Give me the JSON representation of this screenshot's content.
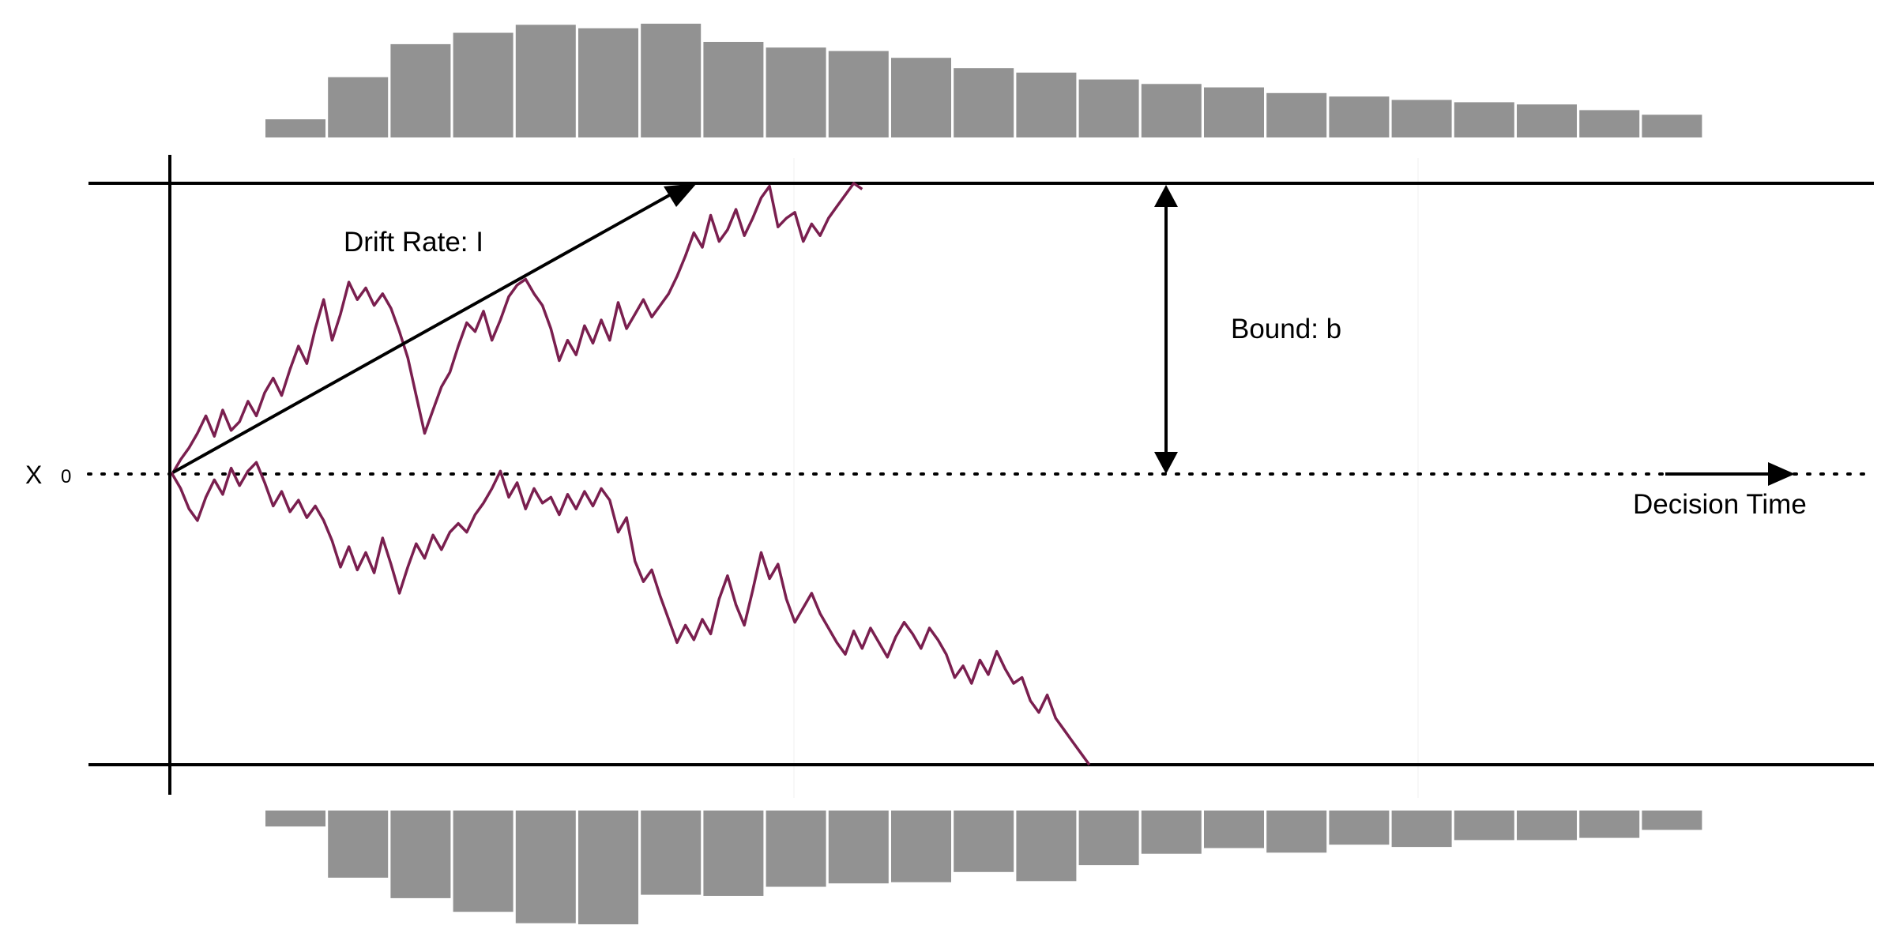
{
  "labels": {
    "drift": "Drift Rate: I",
    "bound": "Bound: b",
    "time": "Decision Time",
    "x0_symbol": "X",
    "x0_value": "0"
  },
  "colors": {
    "path": "#7a1f4f",
    "hist": "#929292",
    "axis": "#000000"
  },
  "chart_data": {
    "type": "diagram",
    "upper_histogram": [
      0.16,
      0.53,
      0.82,
      0.92,
      0.99,
      0.96,
      1.0,
      0.84,
      0.79,
      0.76,
      0.7,
      0.61,
      0.57,
      0.51,
      0.47,
      0.44,
      0.39,
      0.36,
      0.33,
      0.31,
      0.29,
      0.24,
      0.2
    ],
    "lower_histogram": [
      0.14,
      0.59,
      0.77,
      0.89,
      0.99,
      1.0,
      0.74,
      0.75,
      0.67,
      0.64,
      0.63,
      0.54,
      0.62,
      0.48,
      0.38,
      0.33,
      0.37,
      0.3,
      0.32,
      0.26,
      0.26,
      0.24,
      0.17
    ],
    "upper_path": [
      [
        0,
        0.0
      ],
      [
        0.005,
        0.05
      ],
      [
        0.01,
        0.09
      ],
      [
        0.015,
        0.14
      ],
      [
        0.02,
        0.2
      ],
      [
        0.025,
        0.13
      ],
      [
        0.03,
        0.22
      ],
      [
        0.035,
        0.15
      ],
      [
        0.04,
        0.18
      ],
      [
        0.045,
        0.25
      ],
      [
        0.05,
        0.2
      ],
      [
        0.055,
        0.28
      ],
      [
        0.06,
        0.33
      ],
      [
        0.065,
        0.27
      ],
      [
        0.07,
        0.36
      ],
      [
        0.075,
        0.44
      ],
      [
        0.08,
        0.38
      ],
      [
        0.085,
        0.5
      ],
      [
        0.09,
        0.6
      ],
      [
        0.095,
        0.46
      ],
      [
        0.1,
        0.55
      ],
      [
        0.105,
        0.66
      ],
      [
        0.11,
        0.6
      ],
      [
        0.115,
        0.64
      ],
      [
        0.12,
        0.58
      ],
      [
        0.125,
        0.62
      ],
      [
        0.13,
        0.57
      ],
      [
        0.135,
        0.49
      ],
      [
        0.14,
        0.4
      ],
      [
        0.145,
        0.27
      ],
      [
        0.15,
        0.14
      ],
      [
        0.155,
        0.22
      ],
      [
        0.16,
        0.3
      ],
      [
        0.165,
        0.35
      ],
      [
        0.17,
        0.44
      ],
      [
        0.175,
        0.52
      ],
      [
        0.18,
        0.49
      ],
      [
        0.185,
        0.56
      ],
      [
        0.19,
        0.46
      ],
      [
        0.195,
        0.53
      ],
      [
        0.2,
        0.61
      ],
      [
        0.205,
        0.65
      ],
      [
        0.21,
        0.67
      ],
      [
        0.215,
        0.62
      ],
      [
        0.22,
        0.58
      ],
      [
        0.225,
        0.5
      ],
      [
        0.23,
        0.39
      ],
      [
        0.235,
        0.46
      ],
      [
        0.24,
        0.41
      ],
      [
        0.245,
        0.51
      ],
      [
        0.25,
        0.45
      ],
      [
        0.255,
        0.53
      ],
      [
        0.26,
        0.46
      ],
      [
        0.265,
        0.59
      ],
      [
        0.27,
        0.5
      ],
      [
        0.275,
        0.55
      ],
      [
        0.28,
        0.6
      ],
      [
        0.285,
        0.54
      ],
      [
        0.29,
        0.58
      ],
      [
        0.295,
        0.62
      ],
      [
        0.3,
        0.68
      ],
      [
        0.305,
        0.75
      ],
      [
        0.31,
        0.83
      ],
      [
        0.315,
        0.78
      ],
      [
        0.32,
        0.89
      ],
      [
        0.325,
        0.8
      ],
      [
        0.33,
        0.84
      ],
      [
        0.335,
        0.91
      ],
      [
        0.34,
        0.82
      ],
      [
        0.345,
        0.88
      ],
      [
        0.35,
        0.95
      ],
      [
        0.355,
        0.99
      ],
      [
        0.36,
        0.85
      ],
      [
        0.365,
        0.88
      ],
      [
        0.37,
        0.9
      ],
      [
        0.375,
        0.8
      ],
      [
        0.38,
        0.86
      ],
      [
        0.385,
        0.82
      ],
      [
        0.39,
        0.88
      ],
      [
        0.395,
        0.92
      ],
      [
        0.4,
        0.96
      ],
      [
        0.405,
        1.0
      ],
      [
        0.41,
        0.98
      ]
    ],
    "lower_path": [
      [
        0,
        0.0
      ],
      [
        0.005,
        -0.05
      ],
      [
        0.01,
        -0.12
      ],
      [
        0.015,
        -0.16
      ],
      [
        0.02,
        -0.08
      ],
      [
        0.025,
        -0.02
      ],
      [
        0.03,
        -0.07
      ],
      [
        0.035,
        0.02
      ],
      [
        0.04,
        -0.04
      ],
      [
        0.045,
        0.01
      ],
      [
        0.05,
        0.04
      ],
      [
        0.055,
        -0.03
      ],
      [
        0.06,
        -0.11
      ],
      [
        0.065,
        -0.06
      ],
      [
        0.07,
        -0.13
      ],
      [
        0.075,
        -0.09
      ],
      [
        0.08,
        -0.15
      ],
      [
        0.085,
        -0.11
      ],
      [
        0.09,
        -0.16
      ],
      [
        0.095,
        -0.23
      ],
      [
        0.1,
        -0.32
      ],
      [
        0.105,
        -0.25
      ],
      [
        0.11,
        -0.33
      ],
      [
        0.115,
        -0.27
      ],
      [
        0.12,
        -0.34
      ],
      [
        0.125,
        -0.22
      ],
      [
        0.13,
        -0.31
      ],
      [
        0.135,
        -0.41
      ],
      [
        0.14,
        -0.32
      ],
      [
        0.145,
        -0.24
      ],
      [
        0.15,
        -0.29
      ],
      [
        0.155,
        -0.21
      ],
      [
        0.16,
        -0.26
      ],
      [
        0.165,
        -0.2
      ],
      [
        0.17,
        -0.17
      ],
      [
        0.175,
        -0.2
      ],
      [
        0.18,
        -0.14
      ],
      [
        0.185,
        -0.1
      ],
      [
        0.19,
        -0.05
      ],
      [
        0.195,
        0.01
      ],
      [
        0.2,
        -0.08
      ],
      [
        0.205,
        -0.03
      ],
      [
        0.21,
        -0.12
      ],
      [
        0.215,
        -0.05
      ],
      [
        0.22,
        -0.1
      ],
      [
        0.225,
        -0.08
      ],
      [
        0.23,
        -0.14
      ],
      [
        0.235,
        -0.07
      ],
      [
        0.24,
        -0.12
      ],
      [
        0.245,
        -0.06
      ],
      [
        0.25,
        -0.11
      ],
      [
        0.255,
        -0.05
      ],
      [
        0.26,
        -0.09
      ],
      [
        0.265,
        -0.2
      ],
      [
        0.27,
        -0.15
      ],
      [
        0.275,
        -0.3
      ],
      [
        0.28,
        -0.37
      ],
      [
        0.285,
        -0.33
      ],
      [
        0.29,
        -0.42
      ],
      [
        0.295,
        -0.5
      ],
      [
        0.3,
        -0.58
      ],
      [
        0.305,
        -0.52
      ],
      [
        0.31,
        -0.57
      ],
      [
        0.315,
        -0.5
      ],
      [
        0.32,
        -0.55
      ],
      [
        0.325,
        -0.43
      ],
      [
        0.33,
        -0.35
      ],
      [
        0.335,
        -0.45
      ],
      [
        0.34,
        -0.52
      ],
      [
        0.345,
        -0.4
      ],
      [
        0.35,
        -0.27
      ],
      [
        0.355,
        -0.36
      ],
      [
        0.36,
        -0.31
      ],
      [
        0.365,
        -0.43
      ],
      [
        0.37,
        -0.51
      ],
      [
        0.375,
        -0.46
      ],
      [
        0.38,
        -0.41
      ],
      [
        0.385,
        -0.48
      ],
      [
        0.39,
        -0.53
      ],
      [
        0.395,
        -0.58
      ],
      [
        0.4,
        -0.62
      ],
      [
        0.405,
        -0.54
      ],
      [
        0.41,
        -0.6
      ],
      [
        0.415,
        -0.53
      ],
      [
        0.42,
        -0.58
      ],
      [
        0.425,
        -0.63
      ],
      [
        0.43,
        -0.56
      ],
      [
        0.435,
        -0.51
      ],
      [
        0.44,
        -0.55
      ],
      [
        0.445,
        -0.6
      ],
      [
        0.45,
        -0.53
      ],
      [
        0.455,
        -0.57
      ],
      [
        0.46,
        -0.62
      ],
      [
        0.465,
        -0.7
      ],
      [
        0.47,
        -0.66
      ],
      [
        0.475,
        -0.72
      ],
      [
        0.48,
        -0.64
      ],
      [
        0.485,
        -0.69
      ],
      [
        0.49,
        -0.61
      ],
      [
        0.495,
        -0.67
      ],
      [
        0.5,
        -0.72
      ],
      [
        0.505,
        -0.7
      ],
      [
        0.51,
        -0.78
      ],
      [
        0.515,
        -0.82
      ],
      [
        0.52,
        -0.76
      ],
      [
        0.525,
        -0.84
      ],
      [
        0.53,
        -0.88
      ],
      [
        0.535,
        -0.92
      ],
      [
        0.54,
        -0.96
      ],
      [
        0.545,
        -1.0
      ]
    ]
  }
}
